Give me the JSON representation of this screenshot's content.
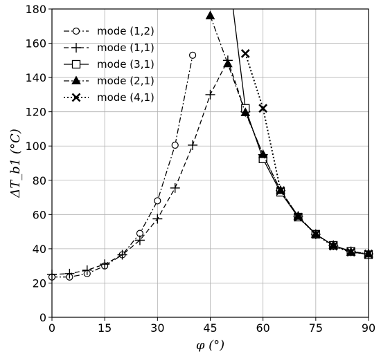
{
  "chart_data": {
    "type": "line",
    "xlabel": "φ (°)",
    "ylabel": "ΔT_b1 (°C)",
    "xlim": [
      0,
      90
    ],
    "ylim": [
      0,
      180
    ],
    "xticks": [
      0,
      15,
      30,
      45,
      60,
      75,
      90
    ],
    "yticks": [
      0,
      20,
      40,
      60,
      80,
      100,
      120,
      140,
      160,
      180
    ],
    "grid": true,
    "legend_position": "top-left",
    "series": [
      {
        "name": "mode (1,2)",
        "marker": "circle",
        "line_style": "dash-dot",
        "color": "#000000",
        "points": [
          [
            0,
            23.5
          ],
          [
            5,
            23.5
          ],
          [
            10,
            25.5
          ],
          [
            15,
            30
          ],
          [
            20,
            36.5
          ],
          [
            25,
            49
          ],
          [
            30,
            68
          ],
          [
            35,
            100.5
          ],
          [
            40,
            153
          ]
        ]
      },
      {
        "name": "mode (1,1)",
        "marker": "plus",
        "line_style": "dashed",
        "color": "#000000",
        "points": [
          [
            0,
            25
          ],
          [
            5,
            25.5
          ],
          [
            10,
            27.5
          ],
          [
            15,
            31
          ],
          [
            20,
            36.5
          ],
          [
            25,
            45
          ],
          [
            30,
            57.5
          ],
          [
            35,
            75.5
          ],
          [
            40,
            100.5
          ],
          [
            45,
            130
          ],
          [
            50,
            150
          ],
          [
            55,
            120
          ],
          [
            60,
            95
          ],
          [
            65,
            74
          ],
          [
            70,
            59
          ],
          [
            75,
            48.5
          ],
          [
            80,
            42
          ],
          [
            85,
            38.5
          ],
          [
            90,
            37
          ]
        ]
      },
      {
        "name": "mode (3,1)",
        "marker": "square",
        "line_style": "solid",
        "color": "#000000",
        "points": [
          [
            51.5,
            180
          ],
          [
            55,
            122
          ],
          [
            60,
            92.5
          ],
          [
            65,
            73
          ],
          [
            70,
            58.5
          ],
          [
            75,
            48.5
          ],
          [
            80,
            42
          ],
          [
            85,
            38.5
          ],
          [
            90,
            36.5
          ]
        ],
        "marked_indices": [
          1,
          2,
          3,
          4,
          5,
          6,
          7,
          8
        ]
      },
      {
        "name": "mode (2,1)",
        "marker": "triangle",
        "line_style": "dash-dot",
        "color": "#000000",
        "points": [
          [
            45,
            176
          ],
          [
            50,
            148
          ],
          [
            55,
            119.5
          ],
          [
            60,
            95
          ],
          [
            65,
            74
          ],
          [
            70,
            59
          ],
          [
            75,
            48.5
          ],
          [
            80,
            42
          ],
          [
            85,
            38
          ],
          [
            90,
            37
          ]
        ]
      },
      {
        "name": "mode (4,1)",
        "marker": "x",
        "line_style": "dotted",
        "color": "#000000",
        "points": [
          [
            55,
            154
          ],
          [
            60,
            122
          ],
          [
            65,
            74
          ],
          [
            70,
            58.5
          ],
          [
            75,
            48.5
          ],
          [
            80,
            41.5
          ],
          [
            85,
            38
          ],
          [
            90,
            37
          ]
        ]
      }
    ]
  }
}
